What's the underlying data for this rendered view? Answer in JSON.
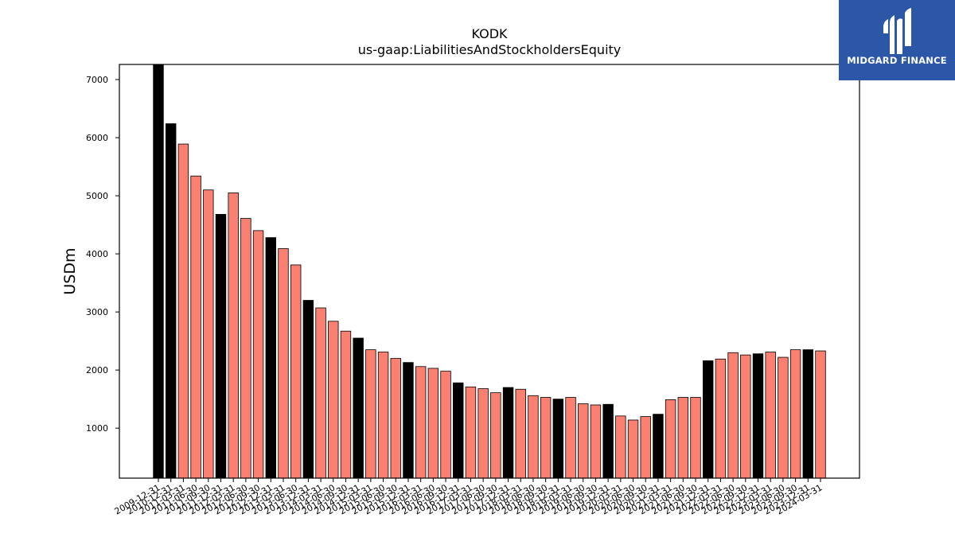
{
  "brand": {
    "name": "MIDGARD FINANCE"
  },
  "chart_data": {
    "type": "bar",
    "title": "KODK",
    "subtitle": "us-gaap:LiabilitiesAndStockholdersEquity",
    "xlabel": "",
    "ylabel": "USDm",
    "ylim": [
      140,
      7260
    ],
    "yticks": [
      1000,
      2000,
      3000,
      4000,
      5000,
      6000,
      7000
    ],
    "grid": false,
    "colors": {
      "annual": "#000000",
      "quarterly": "#fa8072",
      "edge": "#000000"
    },
    "categories": [
      "2009-12-31",
      "2010-12-31",
      "2011-03-31",
      "2011-06-30",
      "2011-09-30",
      "2011-12-31",
      "2012-03-31",
      "2012-06-30",
      "2012-09-30",
      "2012-12-31",
      "2013-03-31",
      "2013-06-30",
      "2013-12-31",
      "2014-03-31",
      "2014-06-30",
      "2014-09-30",
      "2014-12-31",
      "2015-03-31",
      "2015-06-30",
      "2015-09-30",
      "2015-12-31",
      "2016-03-31",
      "2016-06-30",
      "2016-09-30",
      "2016-12-31",
      "2017-03-31",
      "2017-06-30",
      "2017-09-30",
      "2017-12-31",
      "2018-03-31",
      "2018-06-30",
      "2018-09-30",
      "2018-12-31",
      "2019-03-31",
      "2019-06-30",
      "2019-09-30",
      "2019-12-31",
      "2020-03-31",
      "2020-06-30",
      "2020-09-30",
      "2020-12-31",
      "2021-03-31",
      "2021-06-30",
      "2021-09-30",
      "2021-12-31",
      "2022-03-31",
      "2022-06-30",
      "2022-09-30",
      "2022-12-31",
      "2023-03-31",
      "2023-06-30",
      "2023-09-30",
      "2023-12-31",
      "2024-03-31"
    ],
    "values": [
      7260,
      6240,
      5890,
      5340,
      5100,
      4680,
      5050,
      4610,
      4400,
      4280,
      4090,
      3810,
      3200,
      3070,
      2840,
      2670,
      2550,
      2350,
      2310,
      2200,
      2130,
      2060,
      2030,
      1980,
      1780,
      1710,
      1680,
      1610,
      1700,
      1670,
      1560,
      1530,
      1500,
      1530,
      1420,
      1400,
      1410,
      1210,
      1140,
      1200,
      1240,
      1490,
      1530,
      1530,
      2160,
      2190,
      2300,
      2260,
      2280,
      2310,
      2220,
      2350,
      2350,
      2330
    ],
    "annual": [
      true,
      true,
      false,
      false,
      false,
      true,
      false,
      false,
      false,
      true,
      false,
      false,
      true,
      false,
      false,
      false,
      true,
      false,
      false,
      false,
      true,
      false,
      false,
      false,
      true,
      false,
      false,
      false,
      true,
      false,
      false,
      false,
      true,
      false,
      false,
      false,
      true,
      false,
      false,
      false,
      true,
      false,
      false,
      false,
      true,
      false,
      false,
      false,
      true,
      false,
      false,
      false,
      true,
      false
    ]
  }
}
